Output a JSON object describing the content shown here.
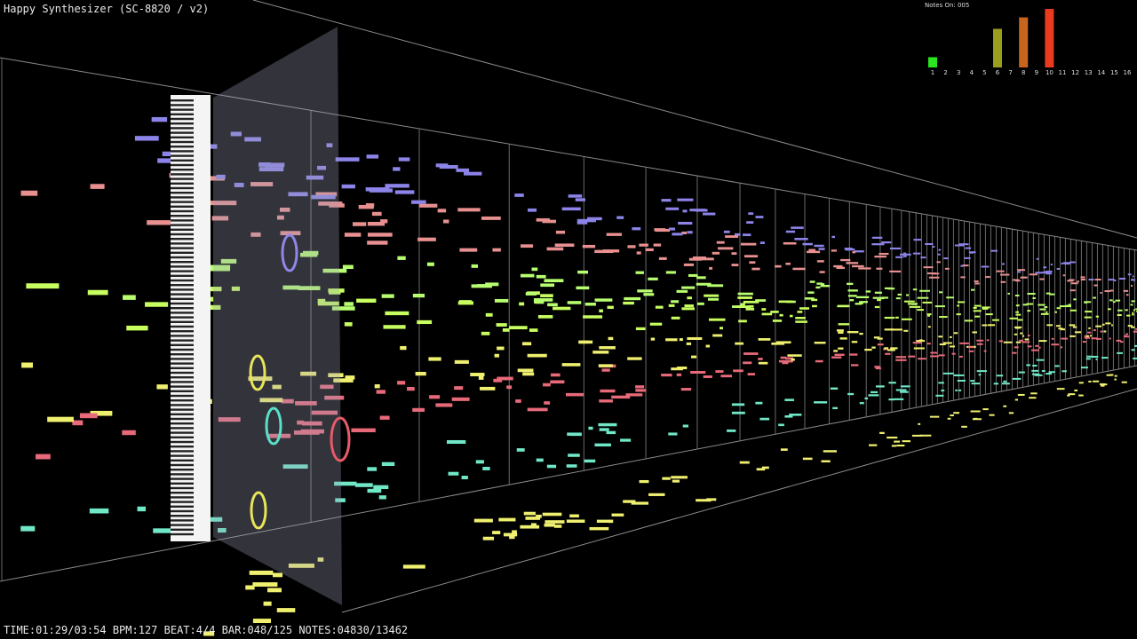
{
  "header": {
    "title": "Happy Synthesizer (SC-8820 / v2)"
  },
  "status": "TIME:01:29/03:54 BPM:127 BEAT:4/4 BAR:048/125 NOTES:04830/13462",
  "meter": {
    "label": "Notes On: 005",
    "channels": [
      1,
      2,
      3,
      4,
      5,
      6,
      7,
      8,
      9,
      10,
      11,
      12,
      13,
      14,
      15,
      16
    ],
    "levels": [
      17,
      0,
      0,
      0,
      0,
      64,
      0,
      83,
      0,
      97,
      0,
      0,
      0,
      0,
      0,
      0
    ]
  }
}
